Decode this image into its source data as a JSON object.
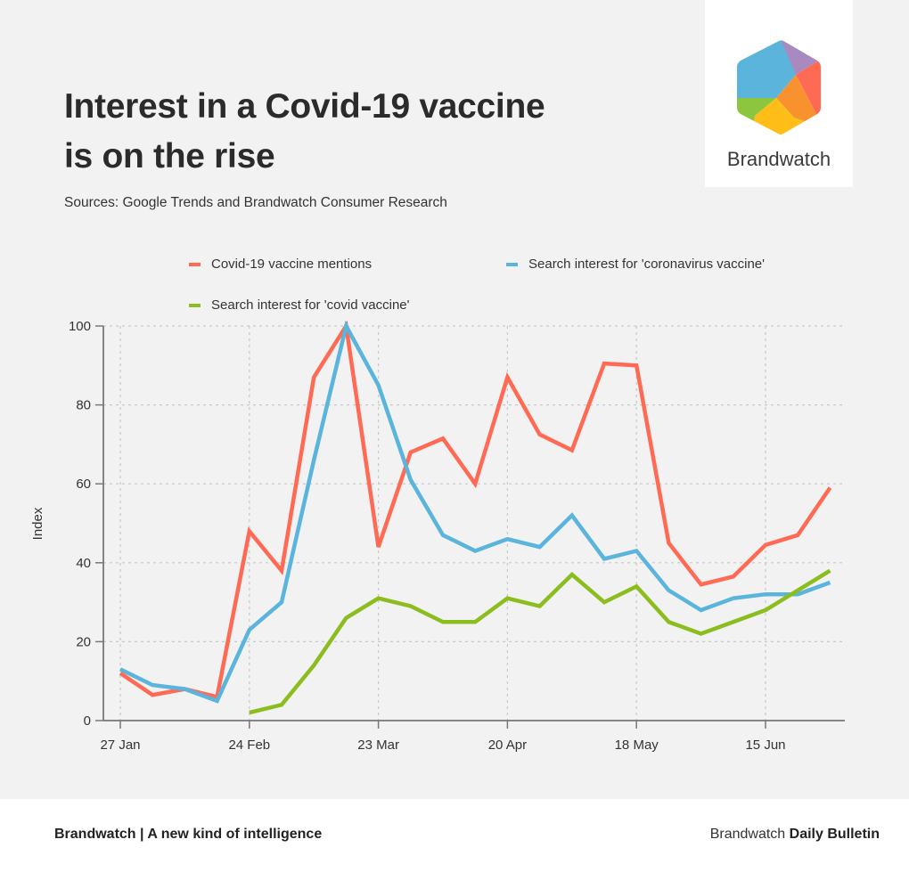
{
  "header": {
    "title_line1": "Interest in a Covid-19 vaccine",
    "title_line2": "is on the rise",
    "source": "Sources: Google Trends and Brandwatch Consumer Research"
  },
  "logo": {
    "text": "Brandwatch",
    "colors": [
      "#5ab4dc",
      "#a98ac0",
      "#ff6a55",
      "#f7922f",
      "#ffbe17",
      "#8cc63f"
    ]
  },
  "footer": {
    "left": "Brandwatch | A new kind of intelligence",
    "right_prefix": "Brandwatch",
    "right_bold": "Daily Bulletin"
  },
  "chart_data": {
    "type": "line",
    "title": "Interest in a Covid-19 vaccine is on the rise",
    "xlabel": "",
    "ylabel": "Index",
    "ylim": [
      0,
      100
    ],
    "yticks": [
      0,
      20,
      40,
      60,
      80,
      100
    ],
    "grid": true,
    "legend_position": "top",
    "x": [
      "27 Jan",
      "3 Feb",
      "10 Feb",
      "17 Feb",
      "24 Feb",
      "2 Mar",
      "9 Mar",
      "16 Mar",
      "23 Mar",
      "30 Mar",
      "6 Apr",
      "13 Apr",
      "20 Apr",
      "27 Apr",
      "4 May",
      "11 May",
      "18 May",
      "25 May",
      "1 Jun",
      "8 Jun",
      "15 Jun",
      "22 Jun",
      "29 Jun"
    ],
    "xticks": [
      {
        "index": 0,
        "label": "27 Jan"
      },
      {
        "index": 4,
        "label": "24 Feb"
      },
      {
        "index": 8,
        "label": "23 Mar"
      },
      {
        "index": 12,
        "label": "20 Apr"
      },
      {
        "index": 16,
        "label": "18 May"
      },
      {
        "index": 20,
        "label": "15 Jun"
      }
    ],
    "series": [
      {
        "name": "Covid-19 vaccine mentions",
        "color": "#ff6a55",
        "values": [
          12,
          6.5,
          8,
          6,
          48,
          38,
          87,
          100,
          44,
          68,
          71.5,
          60,
          87,
          72.5,
          68.5,
          90.5,
          90,
          45,
          34.5,
          36.5,
          44.5,
          47,
          59
        ]
      },
      {
        "name": "Search interest for 'coronavirus vaccine'",
        "color": "#5ab4dc",
        "values": [
          13,
          9,
          8,
          5,
          23,
          30,
          66,
          100,
          85,
          61,
          47,
          43,
          46,
          44,
          52,
          41,
          43,
          33,
          28,
          31,
          32,
          32,
          35
        ]
      },
      {
        "name": "Search interest for 'covid vaccine'",
        "color": "#8cbd1f",
        "values": [
          null,
          null,
          null,
          null,
          2,
          4,
          14,
          26,
          31,
          29,
          25,
          25,
          31,
          29,
          37,
          30,
          34,
          25,
          22,
          25,
          28,
          33,
          38
        ]
      }
    ]
  }
}
